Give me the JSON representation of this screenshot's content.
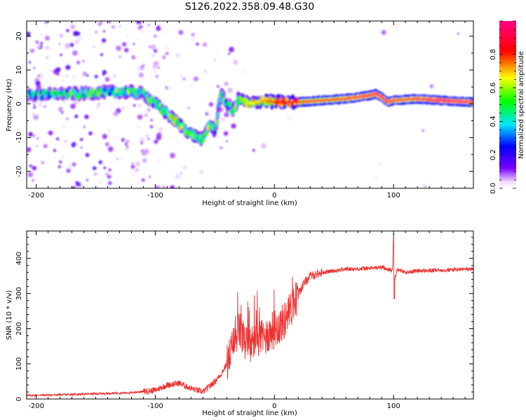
{
  "title": "S126.2022.358.09.48.G30",
  "chart_data": [
    {
      "type": "heatmap",
      "name": "spectrogram",
      "xlabel": "Height of straight line (km)",
      "ylabel": "Frequency (Hz)",
      "xlim": [
        -208,
        167
      ],
      "ylim": [
        -25,
        24.5
      ],
      "xticks": [
        -200,
        -100,
        0,
        100
      ],
      "yticks": [
        -20,
        -10,
        0,
        10,
        20
      ],
      "colorbar": {
        "label": "Normalized spectral amplitude",
        "range": [
          0.0,
          1.0
        ],
        "ticks": [
          0.0,
          0.2,
          0.4,
          0.6,
          0.8
        ],
        "colormap": [
          "#ffffff",
          "#7a00ff",
          "#0000ff",
          "#00e5ff",
          "#00ff00",
          "#ffff00",
          "#ff0000",
          "#ff007f"
        ]
      },
      "ridge": {
        "x": [
          -205,
          -180,
          -160,
          -140,
          -120,
          -110,
          -100,
          -90,
          -80,
          -70,
          -60,
          -55,
          -50,
          -45,
          -40,
          -35,
          -30,
          -20,
          -10,
          0,
          20,
          40,
          60,
          80,
          85,
          90,
          95,
          100,
          120,
          140,
          167
        ],
        "y": [
          2.5,
          3,
          3,
          3.5,
          3.5,
          3,
          0,
          -3,
          -6,
          -9,
          -10.5,
          -6,
          -8,
          3,
          0,
          -2,
          1.5,
          0,
          1,
          0.5,
          0.5,
          1,
          1.5,
          2.5,
          3,
          2,
          0.5,
          1,
          1.5,
          1,
          0.5
        ],
        "amplitude": [
          0.3,
          0.35,
          0.4,
          0.35,
          0.4,
          0.35,
          0.45,
          0.5,
          0.55,
          0.5,
          0.45,
          0.45,
          0.4,
          0.4,
          0.35,
          0.4,
          0.5,
          0.6,
          0.65,
          0.75,
          0.85,
          0.85,
          0.88,
          0.9,
          0.9,
          0.9,
          0.9,
          0.88,
          0.9,
          0.95,
          0.95
        ]
      }
    },
    {
      "type": "line",
      "name": "snr",
      "xlabel": "Height of straight line (km)",
      "ylabel": "SNR (10 * v/v)",
      "xlim": [
        -208,
        167
      ],
      "ylim": [
        0,
        478
      ],
      "xticks": [
        -200,
        -100,
        0,
        100
      ],
      "yticks": [
        0,
        100,
        200,
        300,
        400
      ],
      "color": "#ee3333",
      "x": [
        -208,
        -180,
        -150,
        -120,
        -100,
        -90,
        -80,
        -70,
        -60,
        -55,
        -50,
        -45,
        -40,
        -35,
        -30,
        -25,
        -20,
        -15,
        -10,
        -5,
        0,
        5,
        10,
        15,
        20,
        25,
        30,
        40,
        50,
        60,
        70,
        80,
        90,
        95,
        99,
        100,
        101,
        103,
        110,
        120,
        130,
        140,
        150,
        167
      ],
      "y": [
        10,
        12,
        15,
        18,
        25,
        40,
        45,
        30,
        20,
        35,
        50,
        70,
        100,
        150,
        200,
        160,
        150,
        180,
        170,
        185,
        200,
        210,
        230,
        265,
        300,
        330,
        350,
        360,
        365,
        370,
        370,
        372,
        375,
        370,
        365,
        470,
        340,
        370,
        360,
        365,
        365,
        367,
        368,
        370
      ]
    }
  ]
}
